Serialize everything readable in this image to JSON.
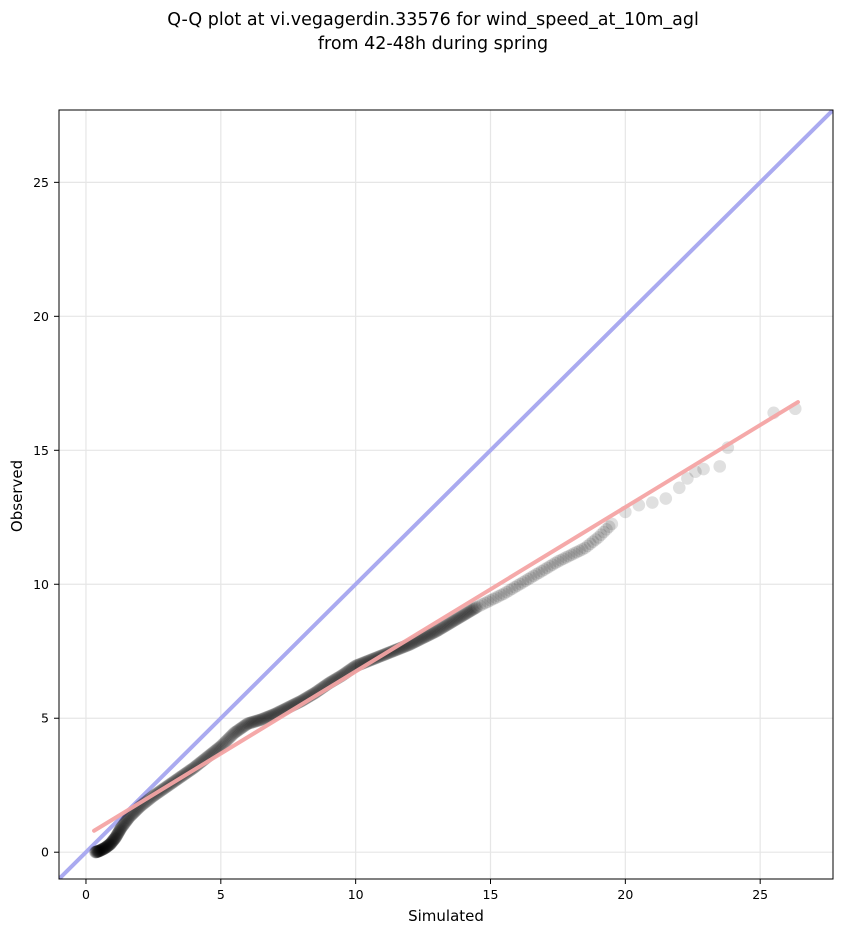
{
  "chart_data": {
    "type": "scatter",
    "title_line1": "Q-Q plot at vi.vegagerdin.33576 for wind_speed_at_10m_agl",
    "title_line2": "from 42-48h during spring",
    "xlabel": "Simulated",
    "ylabel": "Observed",
    "xlim": [
      -1.0,
      27.7
    ],
    "ylim": [
      -1.0,
      27.7
    ],
    "x_ticks": [
      0,
      5,
      10,
      15,
      20,
      25
    ],
    "y_ticks": [
      0,
      5,
      10,
      15,
      20,
      25
    ],
    "grid": true,
    "reference_line": {
      "color": "#aaaaf0",
      "x": [
        -1.0,
        27.7
      ],
      "y": [
        -1.0,
        27.7
      ]
    },
    "fit_line": {
      "color": "#f4a4a4",
      "x": [
        0.3,
        26.4
      ],
      "y": [
        0.8,
        16.8
      ]
    },
    "point_color": "#000000",
    "points_anchor": [
      [
        0.35,
        0.0
      ],
      [
        0.5,
        0.05
      ],
      [
        0.7,
        0.15
      ],
      [
        0.9,
        0.3
      ],
      [
        1.1,
        0.55
      ],
      [
        1.3,
        0.9
      ],
      [
        1.6,
        1.3
      ],
      [
        2.0,
        1.7
      ],
      [
        2.5,
        2.1
      ],
      [
        3.0,
        2.45
      ],
      [
        3.5,
        2.8
      ],
      [
        4.0,
        3.15
      ],
      [
        4.5,
        3.55
      ],
      [
        5.0,
        3.95
      ],
      [
        5.5,
        4.45
      ],
      [
        6.0,
        4.8
      ],
      [
        6.5,
        4.95
      ],
      [
        7.0,
        5.15
      ],
      [
        7.5,
        5.4
      ],
      [
        8.0,
        5.65
      ],
      [
        8.5,
        5.95
      ],
      [
        9.0,
        6.3
      ],
      [
        9.5,
        6.6
      ],
      [
        10.0,
        6.95
      ],
      [
        10.5,
        7.15
      ],
      [
        11.0,
        7.35
      ],
      [
        11.5,
        7.55
      ],
      [
        12.0,
        7.75
      ],
      [
        12.5,
        8.0
      ],
      [
        13.0,
        8.25
      ],
      [
        13.5,
        8.55
      ],
      [
        14.0,
        8.85
      ],
      [
        14.5,
        9.15
      ],
      [
        15.0,
        9.4
      ],
      [
        15.5,
        9.65
      ],
      [
        16.0,
        9.95
      ],
      [
        16.5,
        10.25
      ],
      [
        17.0,
        10.55
      ],
      [
        17.5,
        10.85
      ],
      [
        18.0,
        11.1
      ],
      [
        18.5,
        11.35
      ],
      [
        19.0,
        11.75
      ],
      [
        19.5,
        12.25
      ],
      [
        20.0,
        12.7
      ],
      [
        20.5,
        12.95
      ],
      [
        21.0,
        13.05
      ],
      [
        21.5,
        13.2
      ],
      [
        22.0,
        13.6
      ],
      [
        22.3,
        13.95
      ],
      [
        22.6,
        14.2
      ],
      [
        22.9,
        14.3
      ],
      [
        23.5,
        14.4
      ],
      [
        23.8,
        15.1
      ],
      [
        25.5,
        16.4
      ],
      [
        26.3,
        16.55
      ]
    ]
  }
}
